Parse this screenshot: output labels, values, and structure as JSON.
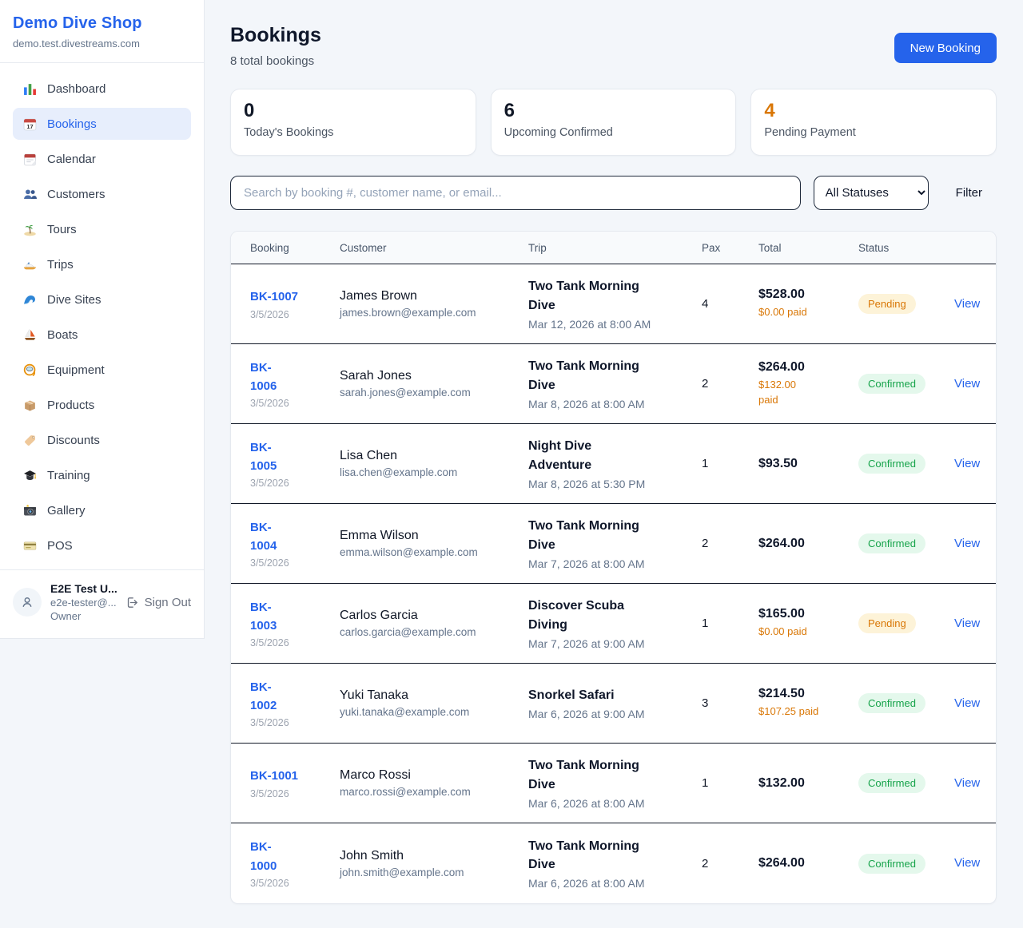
{
  "brand": {
    "name": "Demo Dive Shop",
    "domain": "demo.test.divestreams.com"
  },
  "sidebar": {
    "items": [
      {
        "label": "Dashboard",
        "icon_name": "bar-chart-icon",
        "active": false
      },
      {
        "label": "Bookings",
        "icon_name": "calendar-icon",
        "active": true
      },
      {
        "label": "Calendar",
        "icon_name": "tear-off-calendar-icon",
        "active": false
      },
      {
        "label": "Customers",
        "icon_name": "people-icon",
        "active": false
      },
      {
        "label": "Tours",
        "icon_name": "island-icon",
        "active": false
      },
      {
        "label": "Trips",
        "icon_name": "speedboat-icon",
        "active": false
      },
      {
        "label": "Dive Sites",
        "icon_name": "wave-icon",
        "active": false
      },
      {
        "label": "Boats",
        "icon_name": "sailboat-icon",
        "active": false
      },
      {
        "label": "Equipment",
        "icon_name": "diving-mask-icon",
        "active": false
      },
      {
        "label": "Products",
        "icon_name": "package-icon",
        "active": false
      },
      {
        "label": "Discounts",
        "icon_name": "tag-icon",
        "active": false
      },
      {
        "label": "Training",
        "icon_name": "graduation-cap-icon",
        "active": false
      },
      {
        "label": "Gallery",
        "icon_name": "camera-icon",
        "active": false
      },
      {
        "label": "POS",
        "icon_name": "credit-card-icon",
        "active": false
      }
    ],
    "user": {
      "name": "E2E Test U...",
      "email": "e2e-tester@...",
      "role": "Owner",
      "sign_out_label": "Sign Out"
    }
  },
  "header": {
    "title": "Bookings",
    "subtitle": "8 total bookings",
    "new_booking_label": "New Booking"
  },
  "stats": [
    {
      "value": "0",
      "label": "Today's Bookings",
      "color": "#111827"
    },
    {
      "value": "6",
      "label": "Upcoming Confirmed",
      "color": "#111827"
    },
    {
      "value": "4",
      "label": "Pending Payment",
      "color": "#d97706"
    }
  ],
  "filters": {
    "search_placeholder": "Search by booking #, customer name, or email...",
    "status_selected": "All Statuses",
    "filter_label": "Filter"
  },
  "table": {
    "columns": [
      "Booking",
      "Customer",
      "Trip",
      "Pax",
      "Total",
      "Status"
    ],
    "statuses": {
      "Pending": {
        "color": "#d97706",
        "bg": "#fdf3d8"
      },
      "Confirmed": {
        "color": "#16a34a",
        "bg": "#e4f8ec"
      }
    },
    "rows": [
      {
        "id": "BK-1007",
        "date": "3/5/2026",
        "customer": "James Brown",
        "email": "james.brown@example.com",
        "trip": "Two Tank Morning Dive",
        "trip_datetime": "Mar 12, 2026 at 8:00 AM",
        "pax": "4",
        "total": "$528.00",
        "paid": "$0.00 paid",
        "status": "Pending",
        "action": "View"
      },
      {
        "id": "BK-\n1006",
        "date": "3/5/2026",
        "customer": "Sarah Jones",
        "email": "sarah.jones@example.com",
        "trip": "Two Tank Morning Dive",
        "trip_datetime": "Mar 8, 2026 at 8:00 AM",
        "pax": "2",
        "total": "$264.00",
        "paid": "$132.00\npaid",
        "status": "Confirmed",
        "action": "View"
      },
      {
        "id": "BK-\n1005",
        "date": "3/5/2026",
        "customer": "Lisa Chen",
        "email": "lisa.chen@example.com",
        "trip": "Night Dive Adventure",
        "trip_datetime": "Mar 8, 2026 at 5:30 PM",
        "pax": "1",
        "total": "$93.50",
        "paid": null,
        "status": "Confirmed",
        "action": "View"
      },
      {
        "id": "BK-\n1004",
        "date": "3/5/2026",
        "customer": "Emma Wilson",
        "email": "emma.wilson@example.com",
        "trip": "Two Tank Morning Dive",
        "trip_datetime": "Mar 7, 2026 at 8:00 AM",
        "pax": "2",
        "total": "$264.00",
        "paid": null,
        "status": "Confirmed",
        "action": "View"
      },
      {
        "id": "BK-\n1003",
        "date": "3/5/2026",
        "customer": "Carlos Garcia",
        "email": "carlos.garcia@example.com",
        "trip": "Discover Scuba Diving",
        "trip_datetime": "Mar 7, 2026 at 9:00 AM",
        "pax": "1",
        "total": "$165.00",
        "paid": "$0.00 paid",
        "status": "Pending",
        "action": "View"
      },
      {
        "id": "BK-\n1002",
        "date": "3/5/2026",
        "customer": "Yuki Tanaka",
        "email": "yuki.tanaka@example.com",
        "trip": "Snorkel Safari",
        "trip_datetime": "Mar 6, 2026 at 9:00 AM",
        "pax": "3",
        "total": "$214.50",
        "paid": "$107.25 paid",
        "status": "Confirmed",
        "action": "View"
      },
      {
        "id": "BK-1001",
        "date": "3/5/2026",
        "customer": "Marco Rossi",
        "email": "marco.rossi@example.com",
        "trip": "Two Tank Morning Dive",
        "trip_datetime": "Mar 6, 2026 at 8:00 AM",
        "pax": "1",
        "total": "$132.00",
        "paid": null,
        "status": "Confirmed",
        "action": "View"
      },
      {
        "id": "BK-\n1000",
        "date": "3/5/2026",
        "customer": "John Smith",
        "email": "john.smith@example.com",
        "trip": "Two Tank Morning Dive",
        "trip_datetime": "Mar 6, 2026 at 8:00 AM",
        "pax": "2",
        "total": "$264.00",
        "paid": null,
        "status": "Confirmed",
        "action": "View"
      }
    ]
  },
  "colors": {
    "accent": "#2563eb",
    "pending": "#d97706",
    "confirmed": "#16a34a"
  }
}
